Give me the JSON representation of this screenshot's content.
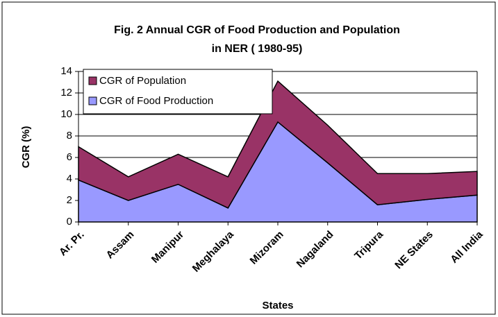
{
  "chart_data": {
    "type": "stacked_area",
    "title": [
      "Fig. 2  Annual CGR of Food Production and Population",
      "in NER ( 1980-95)"
    ],
    "x_label": "States",
    "y_label": "CGR (%)",
    "categories": [
      "Ar. Pr.",
      "Assam",
      "Manipur",
      "Meghalaya",
      "Mizoram",
      "Nagaland",
      "Tripura",
      "NE States",
      "All India"
    ],
    "series": [
      {
        "name": "CGR of Food Production",
        "color": "#9999ff",
        "values": [
          3.9,
          2.0,
          3.5,
          1.3,
          9.3,
          5.5,
          1.6,
          2.1,
          2.5
        ]
      },
      {
        "name": "CGR of Population",
        "color": "#993366",
        "values": [
          3.1,
          2.2,
          2.8,
          2.9,
          3.8,
          3.5,
          2.9,
          2.4,
          2.2
        ]
      }
    ],
    "ylim": [
      0,
      14
    ],
    "yticks": [
      0,
      2,
      4,
      6,
      8,
      10,
      12,
      14
    ],
    "grid": true
  }
}
